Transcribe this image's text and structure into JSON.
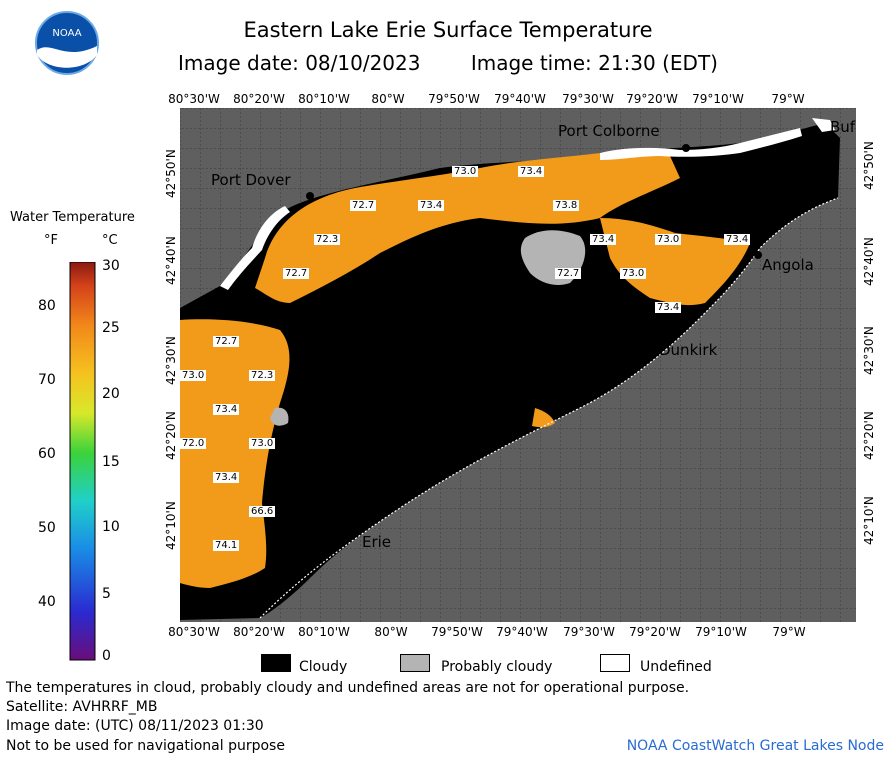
{
  "header": {
    "title": "Eastern Lake Erie Surface Temperature",
    "image_date": "Image date: 08/10/2023",
    "image_time": "Image time: 21:30 (EDT)"
  },
  "logo": {
    "text": "NOAA"
  },
  "map": {
    "lon_labels": [
      "80°30'W",
      "80°20'W",
      "80°10'W",
      "80°W",
      "79°50'W",
      "79°40'W",
      "79°30'W",
      "79°20'W",
      "79°10'W",
      "79°W"
    ],
    "lat_labels": [
      "42°50'N",
      "42°40'N",
      "42°30'N",
      "42°20'N",
      "42°10'N"
    ],
    "places": [
      "Port Colborne",
      "Port Dover",
      "Angola",
      "Dunkirk",
      "Erie",
      "Buf"
    ],
    "temp_labels": [
      "73.0",
      "73.4",
      "72.7",
      "73.4",
      "73.8",
      "72.3",
      "72.7",
      "73.4",
      "73.0",
      "73.4",
      "72.7",
      "73.0",
      "73.4",
      "72.7",
      "73.0",
      "72.3",
      "73.4",
      "72.0",
      "73.0",
      "73.4",
      "66.6",
      "74.1"
    ],
    "colors": {
      "water": "#f29a1a",
      "cloud": "#000000",
      "probably_cloudy": "#b4b4b4",
      "land": "#5f5f5f",
      "undefined": "#ffffff"
    }
  },
  "legend": {
    "title": "Water Temperature",
    "unit_f": "°F",
    "unit_c": "°C",
    "f_ticks": [
      "80",
      "70",
      "60",
      "50",
      "40"
    ],
    "c_ticks": [
      "30",
      "25",
      "20",
      "15",
      "10",
      "5",
      "0"
    ]
  },
  "key": {
    "cloudy": "Cloudy",
    "probably_cloudy": "Probably cloudy",
    "undefined": "Undefined"
  },
  "footer": {
    "disclaimer": "The temperatures in cloud, probably cloudy and undefined areas are not for operational purpose.",
    "satellite": "Satellite: AVHRRF_MB",
    "utc_date": "Image date: (UTC) 08/11/2023  01:30",
    "nav_warning": "Not to be used for navigational purpose",
    "credit": "NOAA CoastWatch Great Lakes Node"
  }
}
